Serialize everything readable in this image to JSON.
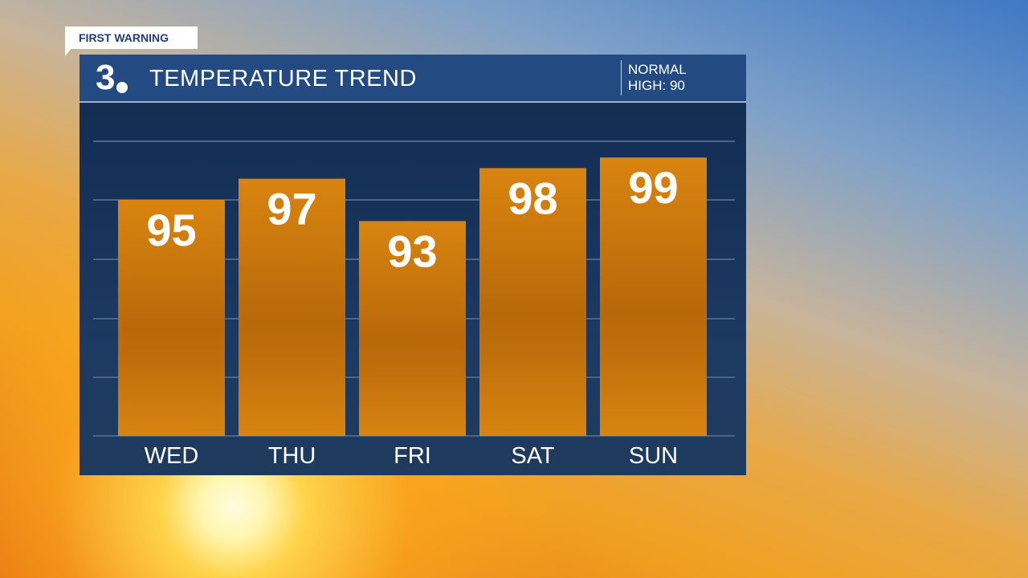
{
  "badge": "FIRST WARNING",
  "header": {
    "logo": "3",
    "title": "TEMPERATURE TREND",
    "normal_line1": "NORMAL",
    "normal_line2": "HIGH: 90"
  },
  "colors": {
    "bar": "#d07a0e",
    "panel": "#15305a",
    "header": "#234b81"
  },
  "chart_data": {
    "type": "bar",
    "categories": [
      "WED",
      "THU",
      "FRI",
      "SAT",
      "SUN"
    ],
    "values": [
      95,
      97,
      93,
      98,
      99
    ],
    "data_labels": [
      "95",
      "97",
      "93",
      "98",
      "99"
    ],
    "title": "TEMPERATURE TREND",
    "xlabel": "",
    "ylabel": "",
    "grid": true
  }
}
